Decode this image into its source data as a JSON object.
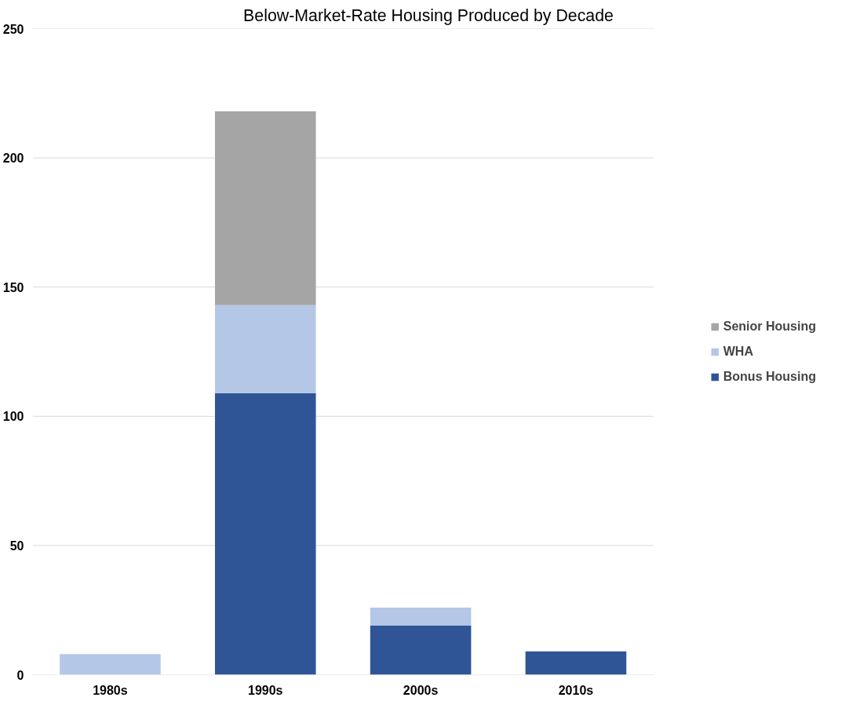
{
  "chart_data": {
    "type": "bar",
    "title": "Below-Market-Rate Housing Produced by Decade",
    "categories": [
      "1980s",
      "1990s",
      "2000s",
      "2010s"
    ],
    "stacked": true,
    "series": [
      {
        "name": "Bonus Housing",
        "color": "#2f5597",
        "values": [
          null,
          109,
          19,
          9
        ]
      },
      {
        "name": "WHA",
        "color": "#b4c7e7",
        "values": [
          8,
          34,
          7,
          null
        ]
      },
      {
        "name": "Senior Housing",
        "color": "#a5a5a5",
        "values": [
          null,
          75,
          null,
          null
        ]
      }
    ],
    "ylim": [
      0,
      250
    ],
    "yticks": [
      0,
      50,
      100,
      150,
      200,
      250
    ],
    "grid": "y",
    "legend": "right"
  }
}
